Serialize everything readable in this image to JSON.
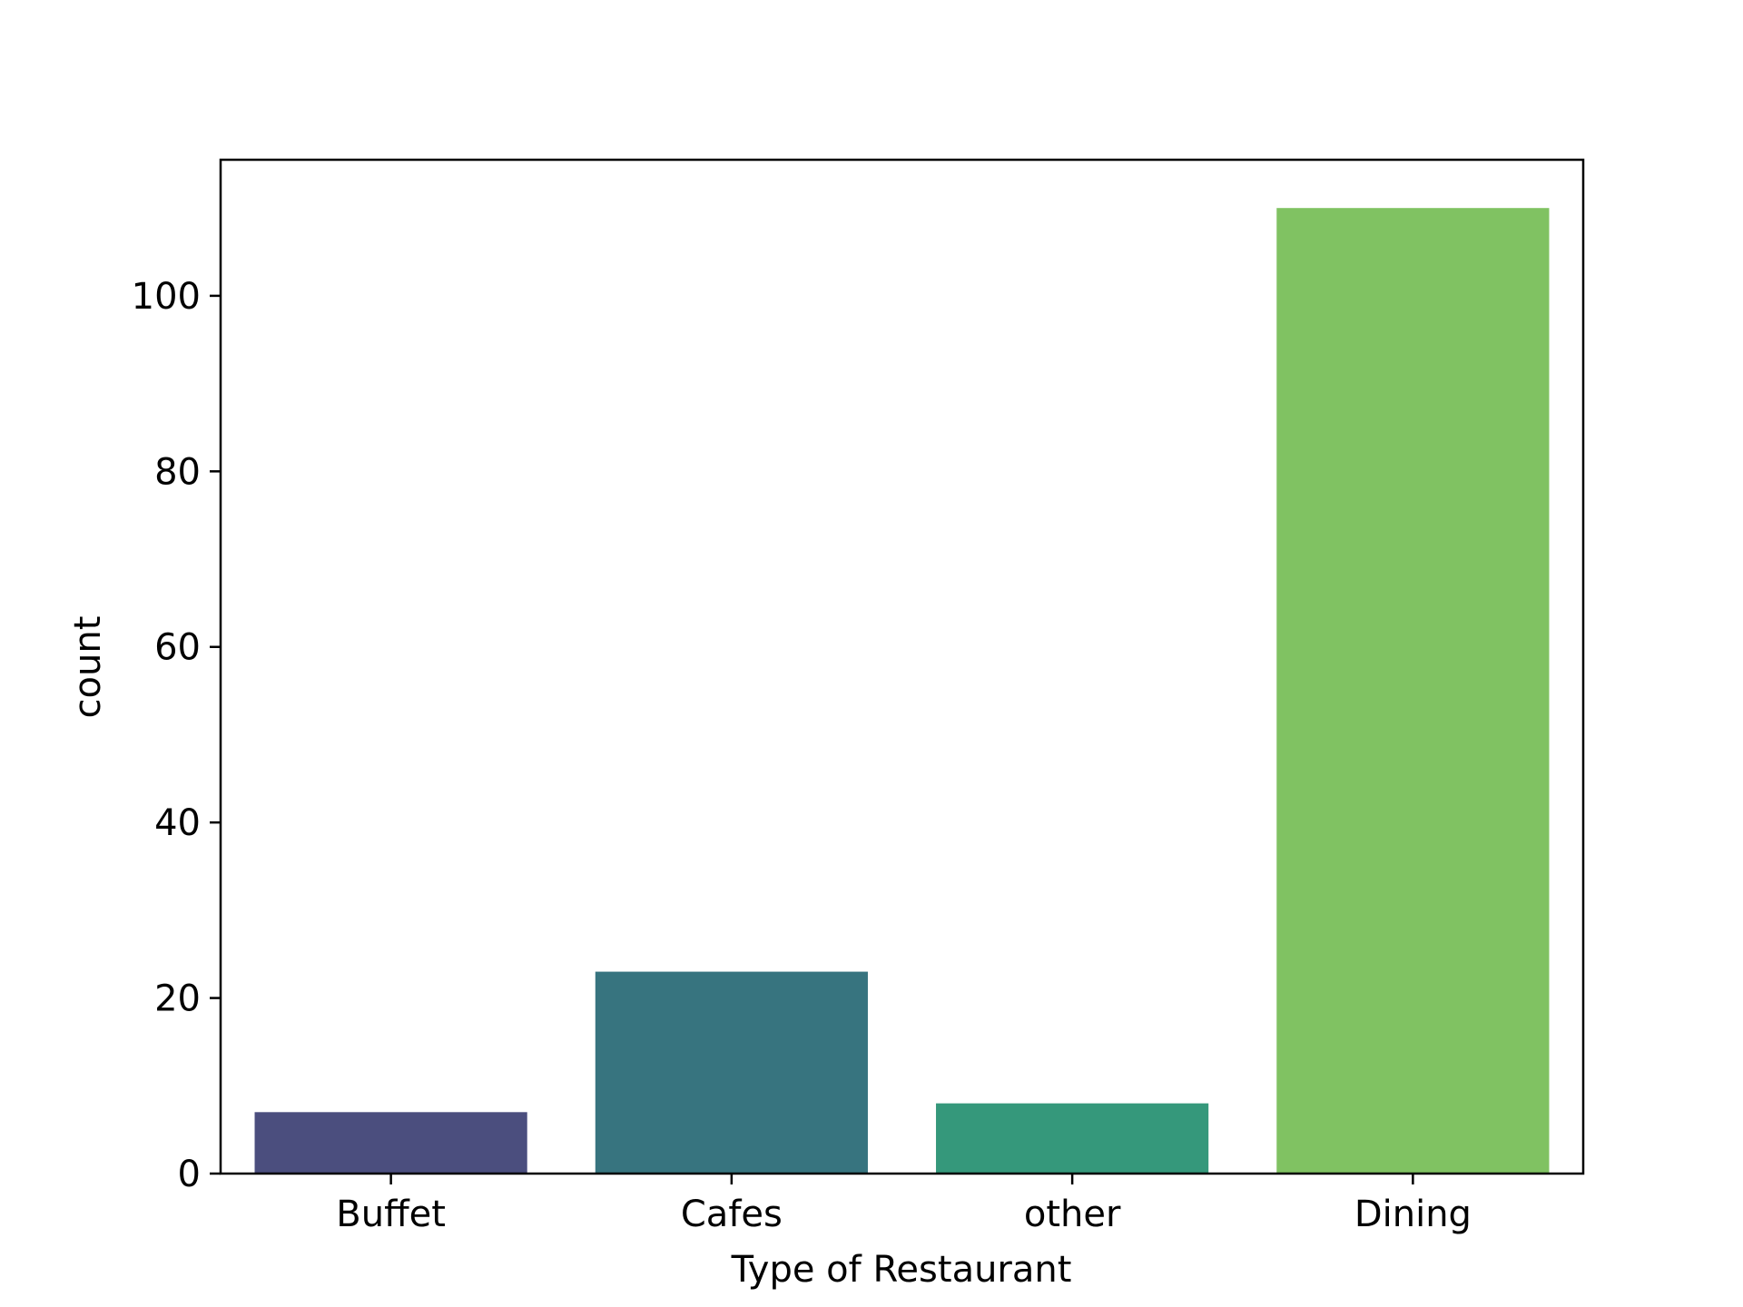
{
  "chart_data": {
    "type": "bar",
    "title": "",
    "xlabel": "Type of Restaurant",
    "ylabel": "count",
    "categories": [
      "Buffet",
      "Cafes",
      "other",
      "Dining"
    ],
    "values": [
      7,
      23,
      8,
      110
    ],
    "colors": [
      "#4b4e7e",
      "#37747f",
      "#35987b",
      "#80c262"
    ],
    "ylim": [
      0,
      115.5
    ],
    "yticks": [
      0,
      20,
      40,
      60,
      80,
      100
    ],
    "grid": false,
    "legend": "none"
  }
}
